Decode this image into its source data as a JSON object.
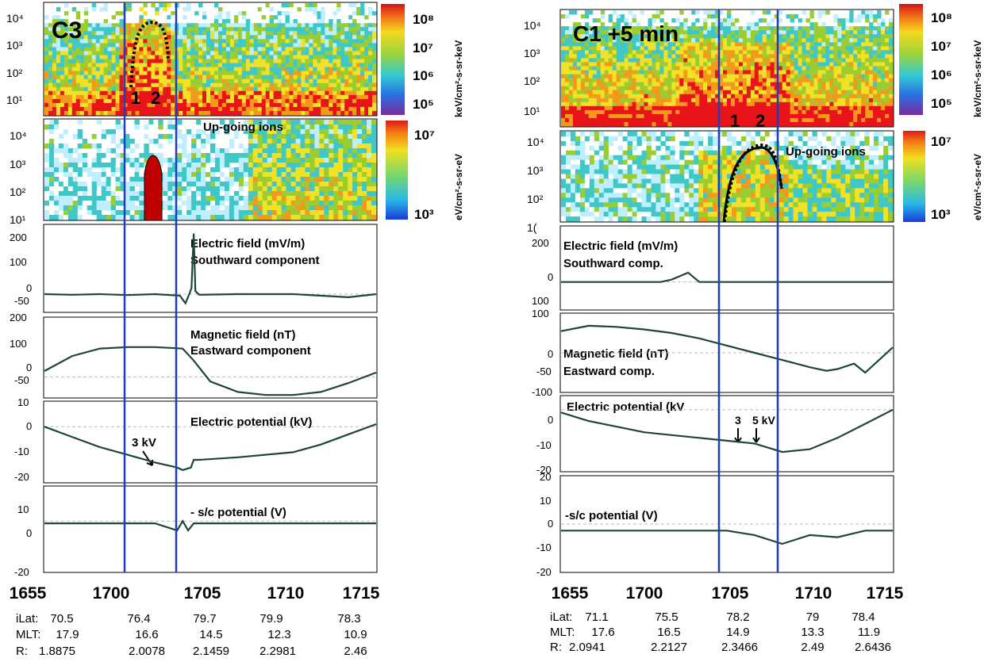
{
  "colors": {
    "trace": "#1e4634",
    "marker_line": "#1f3fbf",
    "spectro_low": "#ffffff",
    "spectro_mid": "#40c8c8",
    "spectro_green": "#9acd32",
    "spectro_high": "#e8141a",
    "ion_beam": "#c00000"
  },
  "time_ticks": [
    "1655",
    "1700",
    "1705",
    "1710",
    "1715"
  ],
  "left": {
    "label": "C3",
    "top_ticks": [
      "10⁴",
      "10³",
      "10²",
      "10¹"
    ],
    "top_cbar_ticks": [
      "10⁸",
      "10⁷",
      "10⁶",
      "10⁵"
    ],
    "top_cbar_unit": "keV/cm²-s-sr-keV",
    "markers": [
      "1",
      "2"
    ],
    "ion_label": "Up-going ions",
    "ion_ticks": [
      "10⁴",
      "10³",
      "10²",
      "10¹"
    ],
    "ion_cbar_ticks": [
      "10⁷",
      "10³"
    ],
    "ion_cbar_unit": "eV/cm²-s-sr-eV",
    "ef": {
      "label1": "Electric field (mV/m)",
      "label2": "Southward component",
      "ticks": [
        "200",
        "100",
        "0",
        "-50"
      ]
    },
    "bf": {
      "label1": "Magnetic field (nT)",
      "label2": "Eastward component",
      "ticks": [
        "200",
        "100",
        "0",
        "-50"
      ]
    },
    "pot": {
      "label": "Electric potential (kV)",
      "annot": "3 kV",
      "ticks": [
        "10",
        "0",
        "-10",
        "-20"
      ]
    },
    "sc": {
      "label": "- s/c potential (V)",
      "ticks": [
        "10",
        "0",
        "-20"
      ]
    },
    "orbit": {
      "ilat": {
        "name": "iLat:",
        "values": [
          "70.5",
          "76.4",
          "79.7",
          "79.9",
          "78.3"
        ]
      },
      "mlt": {
        "name": "MLT:",
        "values": [
          "17.9",
          "16.6",
          "14.5",
          "12.3",
          "10.9"
        ]
      },
      "r": {
        "name": "R:",
        "values": [
          "1.8875",
          "2.0078",
          "2.1459",
          "2.2981",
          "2.46"
        ]
      }
    }
  },
  "right": {
    "label": "C1 +5 min",
    "top_ticks": [
      "10⁴",
      "10³",
      "10²",
      "10¹"
    ],
    "top_cbar_ticks": [
      "10⁸",
      "10⁷",
      "10⁶",
      "10⁵"
    ],
    "top_cbar_unit": "keV/cm²-s-sr-keV",
    "markers": [
      "1",
      "2"
    ],
    "ion_label": "Up-going ions",
    "ion_ticks": [
      "10⁴",
      "10³",
      "10²",
      "1("
    ],
    "ion_cbar_ticks": [
      "10⁷",
      "10³"
    ],
    "ion_cbar_unit": "eV/cm²-s-sr-eV",
    "ef": {
      "label1": "Electric field (mV/m)",
      "label2": "Southward comp.",
      "ticks": [
        "200",
        "0",
        "100"
      ]
    },
    "bf": {
      "label1": "Magnetic field (nT)",
      "label2": "Eastward comp.",
      "ticks": [
        "100",
        "0",
        "-50",
        "-100"
      ]
    },
    "pot": {
      "label": "Electric potential (kV",
      "annot1": "3",
      "annot2": "5 kV",
      "ticks": [
        "0",
        "-10",
        "-20"
      ]
    },
    "sc": {
      "label": "-s/c potential (V)",
      "ticks": [
        "20",
        "10",
        "0",
        "-10",
        "-20"
      ]
    },
    "orbit": {
      "ilat": {
        "name": "iLat:",
        "values": [
          "71.1",
          "75.5",
          "78.2",
          "79",
          "78.4"
        ]
      },
      "mlt": {
        "name": "MLT:",
        "values": [
          "17.6",
          "16.5",
          "14.9",
          "13.3",
          "11.9"
        ]
      },
      "r": {
        "name": "R:",
        "values": [
          "2.0941",
          "2.2127",
          "2.3466",
          "2.49",
          "2.6436"
        ]
      }
    }
  },
  "chart_data": [
    {
      "type": "line",
      "title": "C3",
      "x_label_ticks": [
        "1655",
        "1700",
        "1705",
        "1710",
        "1715"
      ],
      "xlim": [
        1655,
        1715
      ],
      "vertical_markers": [
        1700,
        1703.3
      ],
      "series": [
        {
          "name": "Electric field (mV/m) Southward component",
          "x": [
            1655,
            1660,
            1665,
            1670,
            1675,
            1679.5,
            1680.5,
            1681.2,
            1681.6,
            1682,
            1682.3,
            1683,
            1690,
            1700,
            1710,
            1715
          ],
          "y": [
            0,
            -2,
            0,
            -3,
            0,
            -5,
            -30,
            0,
            20,
            200,
            10,
            -2,
            0,
            0,
            -10,
            0
          ]
        },
        {
          "name": "Magnetic field (nT) Eastward component",
          "x": [
            1655,
            1660,
            1665,
            1670,
            1675,
            1680,
            1682,
            1685,
            1690,
            1695,
            1700,
            1705,
            1710,
            1715
          ],
          "y": [
            20,
            70,
            95,
            100,
            100,
            95,
            55,
            -15,
            -50,
            -60,
            -60,
            -50,
            -20,
            15
          ]
        },
        {
          "name": "Electric potential (kV)",
          "x": [
            1655,
            1660,
            1665,
            1670,
            1675,
            1679,
            1680,
            1681.5,
            1682,
            1683,
            1690,
            1700,
            1705,
            1710,
            1715
          ],
          "y": [
            0,
            -4,
            -8,
            -11,
            -14,
            -16,
            -17,
            -16,
            -13,
            -13,
            -12,
            -10,
            -7,
            -3,
            1
          ]
        },
        {
          "name": "- s/c potential (V)",
          "x": [
            1655,
            1665,
            1675,
            1679,
            1680,
            1681,
            1682,
            1685,
            1695,
            1705,
            1715
          ],
          "y": [
            -1,
            -1,
            -1,
            -4,
            0,
            -4,
            -1,
            -1,
            -1,
            -1,
            -1
          ]
        }
      ]
    },
    {
      "type": "line",
      "title": "C1 +5 min",
      "x_label_ticks": [
        "1655",
        "1700",
        "1705",
        "1710",
        "1715"
      ],
      "xlim": [
        1655,
        1715
      ],
      "vertical_markers": [
        1705,
        1708.2
      ],
      "series": [
        {
          "name": "Electric field (mV/m) Southward comp.",
          "x": [
            1655,
            1660,
            1665,
            1670,
            1673,
            1675,
            1678,
            1680,
            1682,
            1683,
            1685,
            1690,
            1700,
            1710,
            1715
          ],
          "y": [
            0,
            0,
            0,
            0,
            0,
            10,
            40,
            0,
            0,
            0,
            0,
            0,
            0,
            0,
            0
          ]
        },
        {
          "name": "Magnetic field (nT) Eastward comp.",
          "x": [
            1655,
            1660,
            1665,
            1670,
            1675,
            1680,
            1685,
            1690,
            1695,
            1700,
            1703,
            1705,
            1708,
            1710,
            1715
          ],
          "y": [
            60,
            75,
            72,
            65,
            55,
            40,
            20,
            0,
            -20,
            -40,
            -50,
            -45,
            -30,
            -55,
            15
          ]
        },
        {
          "name": "Electric potential (kV",
          "x": [
            1655,
            1660,
            1665,
            1670,
            1675,
            1680,
            1685,
            1690,
            1695,
            1700,
            1705,
            1710,
            1715
          ],
          "y": [
            -1,
            -4,
            -6,
            -8,
            -9,
            -10,
            -11,
            -12,
            -15,
            -14,
            -10,
            -5,
            0
          ]
        },
        {
          "name": "-s/c potential (V)",
          "x": [
            1655,
            1665,
            1675,
            1685,
            1690,
            1695,
            1700,
            1705,
            1710,
            1715
          ],
          "y": [
            -3,
            -3,
            -3,
            -3,
            -5,
            -9,
            -5,
            -6,
            -3,
            -3
          ]
        }
      ]
    }
  ]
}
